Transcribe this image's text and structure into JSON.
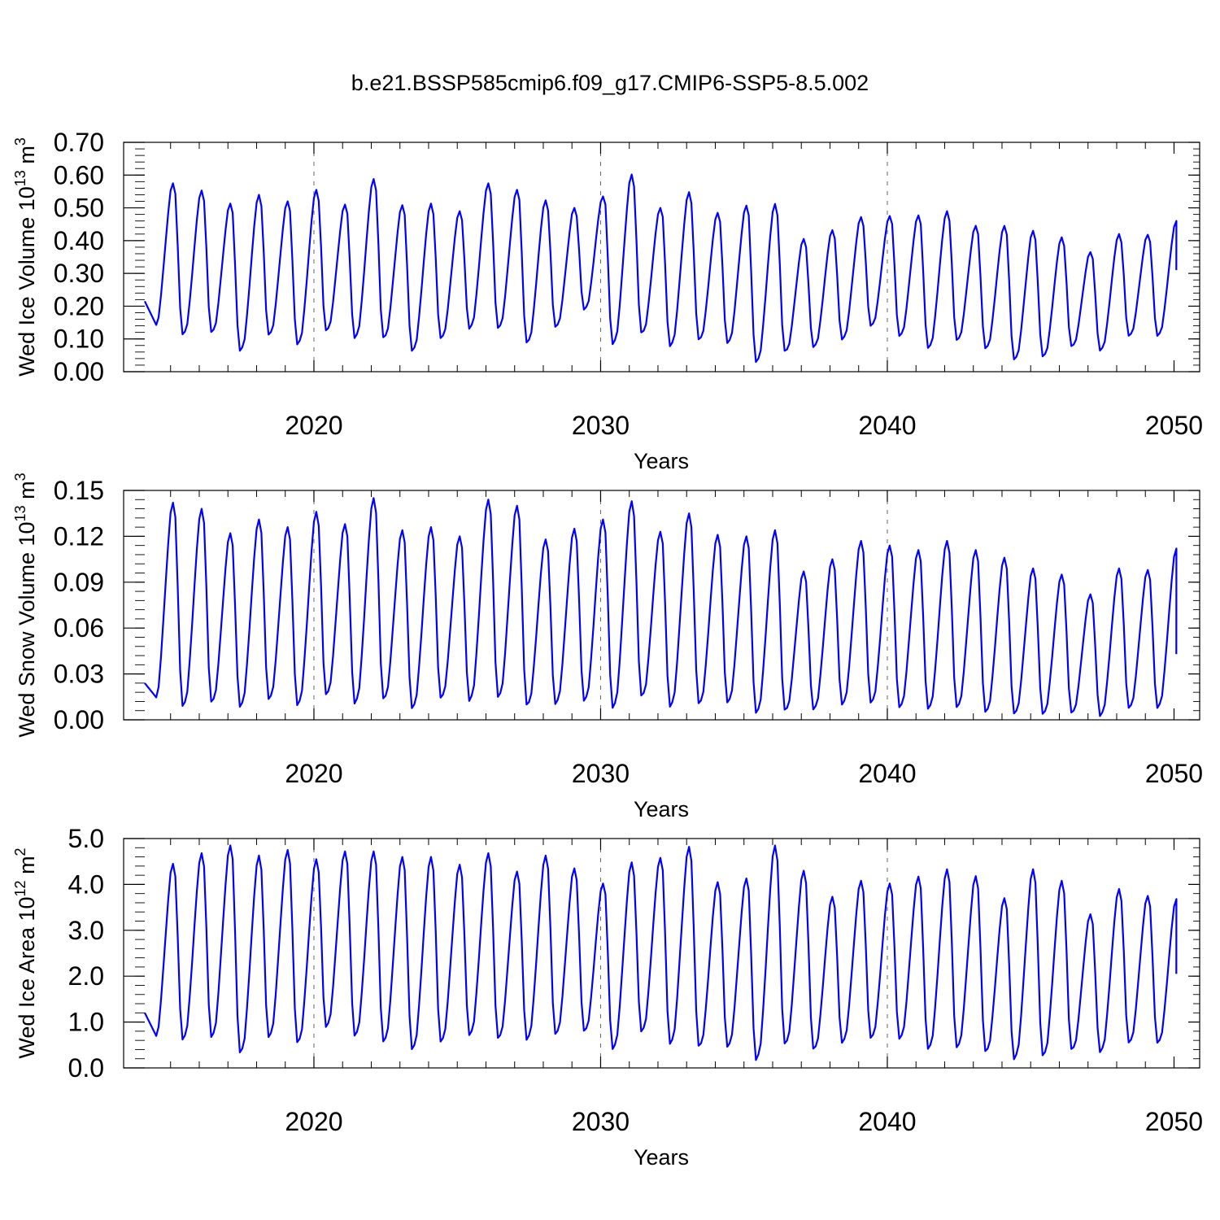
{
  "chart_data": {
    "title": "b.e21.BSSP585cmip6.f09_g17.CMIP6-SSP5-8.5.002",
    "colors": {
      "line": "#0000ff",
      "axis": "#000000",
      "grid": "#000000"
    },
    "x_axis": {
      "label": "Years",
      "range": [
        2014.1,
        2050.1
      ],
      "ticks": [
        2020,
        2030,
        2040,
        2050
      ],
      "tick_labels": [
        "2020",
        "2030",
        "2040",
        "2050"
      ],
      "minor_step": 1
    },
    "panels": [
      {
        "type": "line",
        "series_name": "Wed Ice Volume",
        "ylabel_main": "Wed Ice Volume 10",
        "ylabel_exp": "13",
        "ylabel_unit": " m",
        "ylabel_unit_exp": "3",
        "ylim": [
          0,
          0.7
        ],
        "yticks": [
          0,
          0.1,
          0.2,
          0.3,
          0.4,
          0.5,
          0.6,
          0.7
        ],
        "ytick_labels": [
          "0.00",
          "0.10",
          "0.20",
          "0.30",
          "0.40",
          "0.50",
          "0.60",
          "0.70"
        ],
        "yminor_step": 0.02,
        "grid": "dashed vertical at major x ticks",
        "annual": [
          {
            "year": 2014,
            "max": 0.575,
            "min": 0.12
          },
          {
            "year": 2015,
            "max": 0.553,
            "min": 0.1
          },
          {
            "year": 2016,
            "max": 0.513,
            "min": 0.108
          },
          {
            "year": 2017,
            "max": 0.54,
            "min": 0.05
          },
          {
            "year": 2018,
            "max": 0.52,
            "min": 0.1
          },
          {
            "year": 2019,
            "max": 0.555,
            "min": 0.07
          },
          {
            "year": 2020,
            "max": 0.51,
            "min": 0.113
          },
          {
            "year": 2021,
            "max": 0.588,
            "min": 0.09
          },
          {
            "year": 2022,
            "max": 0.508,
            "min": 0.09
          },
          {
            "year": 2023,
            "max": 0.513,
            "min": 0.05
          },
          {
            "year": 2024,
            "max": 0.49,
            "min": 0.09
          },
          {
            "year": 2025,
            "max": 0.575,
            "min": 0.12
          },
          {
            "year": 2026,
            "max": 0.555,
            "min": 0.12
          },
          {
            "year": 2027,
            "max": 0.523,
            "min": 0.075
          },
          {
            "year": 2028,
            "max": 0.5,
            "min": 0.125
          },
          {
            "year": 2029,
            "max": 0.535,
            "min": 0.18
          },
          {
            "year": 2030,
            "max": 0.602,
            "min": 0.07
          },
          {
            "year": 2031,
            "max": 0.5,
            "min": 0.105
          },
          {
            "year": 2032,
            "max": 0.548,
            "min": 0.065
          },
          {
            "year": 2033,
            "max": 0.485,
            "min": 0.085
          },
          {
            "year": 2034,
            "max": 0.507,
            "min": 0.075
          },
          {
            "year": 2035,
            "max": 0.512,
            "min": 0.015
          },
          {
            "year": 2036,
            "max": 0.405,
            "min": 0.05
          },
          {
            "year": 2037,
            "max": 0.432,
            "min": 0.065
          },
          {
            "year": 2038,
            "max": 0.472,
            "min": 0.088
          },
          {
            "year": 2039,
            "max": 0.475,
            "min": 0.13
          },
          {
            "year": 2040,
            "max": 0.477,
            "min": 0.098
          },
          {
            "year": 2041,
            "max": 0.49,
            "min": 0.06
          },
          {
            "year": 2042,
            "max": 0.445,
            "min": 0.085
          },
          {
            "year": 2043,
            "max": 0.445,
            "min": 0.06
          },
          {
            "year": 2044,
            "max": 0.43,
            "min": 0.025
          },
          {
            "year": 2045,
            "max": 0.41,
            "min": 0.035
          },
          {
            "year": 2046,
            "max": 0.365,
            "min": 0.068
          },
          {
            "year": 2047,
            "max": 0.42,
            "min": 0.055
          },
          {
            "year": 2048,
            "max": 0.418,
            "min": 0.1
          },
          {
            "year": 2049,
            "max": 0.46,
            "min": null
          }
        ],
        "start_value": 0.215,
        "end_value": 0.31
      },
      {
        "type": "line",
        "series_name": "Wed Snow Volume",
        "ylabel_main": "Wed Snow Volume 10",
        "ylabel_exp": "13",
        "ylabel_unit": " m",
        "ylabel_unit_exp": "3",
        "ylim": [
          0,
          0.15
        ],
        "yticks": [
          0,
          0.03,
          0.06,
          0.09,
          0.12,
          0.15
        ],
        "ytick_labels": [
          "0.00",
          "0.03",
          "0.06",
          "0.09",
          "0.12",
          "0.15"
        ],
        "yminor_step": 0.006,
        "grid": "dashed vertical at major x ticks",
        "annual": [
          {
            "year": 2014,
            "max": 0.142,
            "min": 0.008
          },
          {
            "year": 2015,
            "max": 0.138,
            "min": 0.005
          },
          {
            "year": 2016,
            "max": 0.122,
            "min": 0.008
          },
          {
            "year": 2017,
            "max": 0.131,
            "min": 0.005
          },
          {
            "year": 2018,
            "max": 0.126,
            "min": 0.01
          },
          {
            "year": 2019,
            "max": 0.136,
            "min": 0.006
          },
          {
            "year": 2020,
            "max": 0.128,
            "min": 0.013
          },
          {
            "year": 2021,
            "max": 0.145,
            "min": 0.007
          },
          {
            "year": 2022,
            "max": 0.124,
            "min": 0.01
          },
          {
            "year": 2023,
            "max": 0.126,
            "min": 0.004
          },
          {
            "year": 2024,
            "max": 0.12,
            "min": 0.011
          },
          {
            "year": 2025,
            "max": 0.144,
            "min": 0.009
          },
          {
            "year": 2026,
            "max": 0.14,
            "min": 0.011
          },
          {
            "year": 2027,
            "max": 0.118,
            "min": 0.006
          },
          {
            "year": 2028,
            "max": 0.125,
            "min": 0.007
          },
          {
            "year": 2029,
            "max": 0.131,
            "min": 0.009
          },
          {
            "year": 2030,
            "max": 0.143,
            "min": 0.004
          },
          {
            "year": 2031,
            "max": 0.123,
            "min": 0.012
          },
          {
            "year": 2032,
            "max": 0.135,
            "min": 0.005
          },
          {
            "year": 2033,
            "max": 0.121,
            "min": 0.007
          },
          {
            "year": 2034,
            "max": 0.12,
            "min": 0.008
          },
          {
            "year": 2035,
            "max": 0.124,
            "min": 0.001
          },
          {
            "year": 2036,
            "max": 0.097,
            "min": 0.003
          },
          {
            "year": 2037,
            "max": 0.105,
            "min": 0.004
          },
          {
            "year": 2038,
            "max": 0.117,
            "min": 0.007
          },
          {
            "year": 2039,
            "max": 0.114,
            "min": 0.008
          },
          {
            "year": 2040,
            "max": 0.111,
            "min": 0.005
          },
          {
            "year": 2041,
            "max": 0.117,
            "min": 0.004
          },
          {
            "year": 2042,
            "max": 0.111,
            "min": 0.005
          },
          {
            "year": 2043,
            "max": 0.106,
            "min": 0.002
          },
          {
            "year": 2044,
            "max": 0.099,
            "min": 0.001
          },
          {
            "year": 2045,
            "max": 0.095,
            "min": 0.001
          },
          {
            "year": 2046,
            "max": 0.082,
            "min": 0.002
          },
          {
            "year": 2047,
            "max": 0.099,
            "min": 0.0
          },
          {
            "year": 2048,
            "max": 0.098,
            "min": 0.005
          },
          {
            "year": 2049,
            "max": 0.112,
            "min": null
          }
        ],
        "start_value": 0.024,
        "end_value": 0.043
      },
      {
        "type": "line",
        "series_name": "Wed Ice Area",
        "ylabel_main": "Wed Ice Area 10",
        "ylabel_exp": "12",
        "ylabel_unit": " m",
        "ylabel_unit_exp": "2",
        "ylim": [
          0,
          5
        ],
        "yticks": [
          0,
          1,
          2,
          3,
          4,
          5
        ],
        "ytick_labels": [
          "0.0",
          "1.0",
          "2.0",
          "3.0",
          "4.0",
          "5.0"
        ],
        "yminor_step": 0.2,
        "grid": "dashed vertical at major x ticks",
        "annual": [
          {
            "year": 2014,
            "max": 4.45,
            "min": 0.5
          },
          {
            "year": 2015,
            "max": 4.68,
            "min": 0.5
          },
          {
            "year": 2016,
            "max": 4.85,
            "min": 0.55
          },
          {
            "year": 2017,
            "max": 4.63,
            "min": 0.2
          },
          {
            "year": 2018,
            "max": 4.75,
            "min": 0.55
          },
          {
            "year": 2019,
            "max": 4.55,
            "min": 0.43
          },
          {
            "year": 2020,
            "max": 4.72,
            "min": 0.78
          },
          {
            "year": 2021,
            "max": 4.72,
            "min": 0.58
          },
          {
            "year": 2022,
            "max": 4.6,
            "min": 0.45
          },
          {
            "year": 2023,
            "max": 4.6,
            "min": 0.28
          },
          {
            "year": 2024,
            "max": 4.43,
            "min": 0.45
          },
          {
            "year": 2025,
            "max": 4.68,
            "min": 0.6
          },
          {
            "year": 2026,
            "max": 4.28,
            "min": 0.53
          },
          {
            "year": 2027,
            "max": 4.63,
            "min": 0.5
          },
          {
            "year": 2028,
            "max": 4.35,
            "min": 0.62
          },
          {
            "year": 2029,
            "max": 4.02,
            "min": 0.7
          },
          {
            "year": 2030,
            "max": 4.48,
            "min": 0.3
          },
          {
            "year": 2031,
            "max": 4.58,
            "min": 0.68
          },
          {
            "year": 2032,
            "max": 4.82,
            "min": 0.4
          },
          {
            "year": 2033,
            "max": 4.05,
            "min": 0.35
          },
          {
            "year": 2034,
            "max": 4.13,
            "min": 0.35
          },
          {
            "year": 2035,
            "max": 4.85,
            "min": 0.05
          },
          {
            "year": 2036,
            "max": 4.3,
            "min": 0.4
          },
          {
            "year": 2037,
            "max": 3.73,
            "min": 0.3
          },
          {
            "year": 2038,
            "max": 4.08,
            "min": 0.45
          },
          {
            "year": 2039,
            "max": 4.02,
            "min": 0.55
          },
          {
            "year": 2040,
            "max": 4.17,
            "min": 0.53
          },
          {
            "year": 2041,
            "max": 4.33,
            "min": 0.3
          },
          {
            "year": 2042,
            "max": 4.18,
            "min": 0.33
          },
          {
            "year": 2043,
            "max": 3.7,
            "min": 0.25
          },
          {
            "year": 2044,
            "max": 4.33,
            "min": 0.08
          },
          {
            "year": 2045,
            "max": 4.08,
            "min": 0.15
          },
          {
            "year": 2046,
            "max": 3.35,
            "min": 0.3
          },
          {
            "year": 2047,
            "max": 3.9,
            "min": 0.25
          },
          {
            "year": 2048,
            "max": 3.75,
            "min": 0.45
          },
          {
            "year": 2049,
            "max": 3.68,
            "min": null
          }
        ],
        "start_value": 1.2,
        "end_value": 2.05
      }
    ]
  }
}
